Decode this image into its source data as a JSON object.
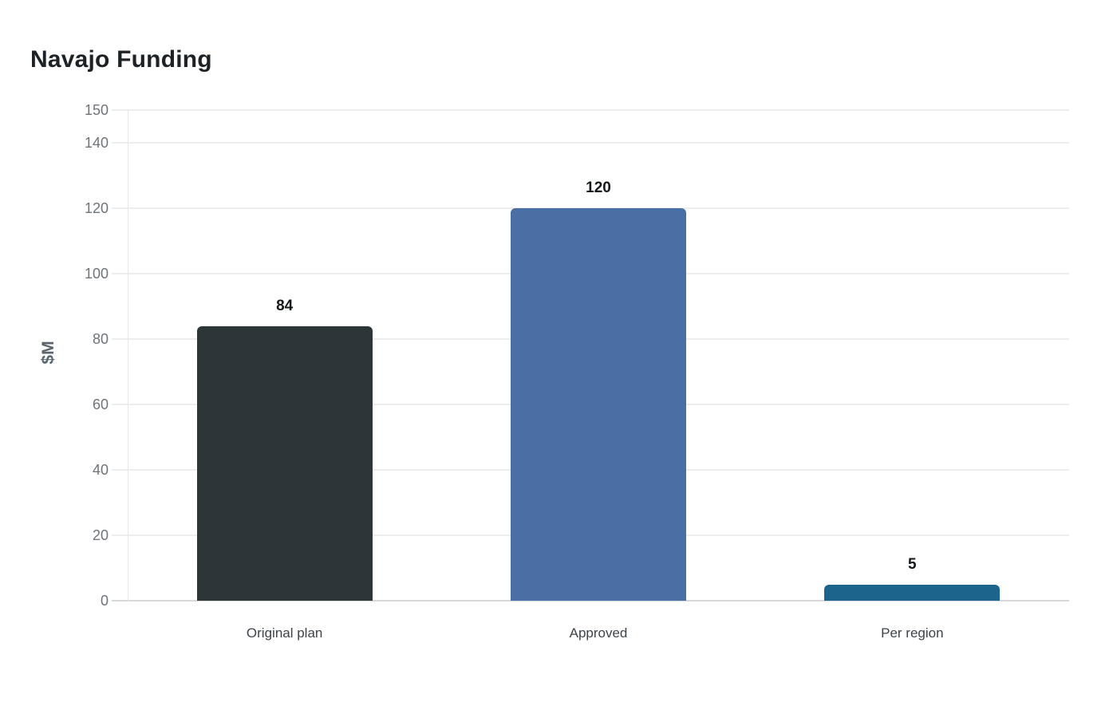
{
  "page": {
    "background": "#ffffff"
  },
  "chart_data": {
    "type": "bar",
    "title": "Navajo Funding",
    "ylabel": "$M",
    "xlabel": "",
    "categories": [
      "Original plan",
      "Approved",
      "Per region"
    ],
    "values": [
      84,
      120,
      5
    ],
    "value_labels": [
      "84",
      "120",
      "5"
    ],
    "bar_colors": [
      "#2c3639",
      "#4a6fa5",
      "#1d648c"
    ],
    "yticks": [
      0,
      20,
      40,
      60,
      80,
      100,
      120,
      140,
      150
    ],
    "ylim": [
      0,
      150
    ],
    "grid": true,
    "legend": false,
    "gridline_color": "#ededed",
    "baseline_color": "#d8d8d8",
    "tick_label_color": "#6e747a",
    "category_label_color": "#3c4349",
    "title_color": "#1d2226",
    "value_label_color": "#15181a"
  }
}
